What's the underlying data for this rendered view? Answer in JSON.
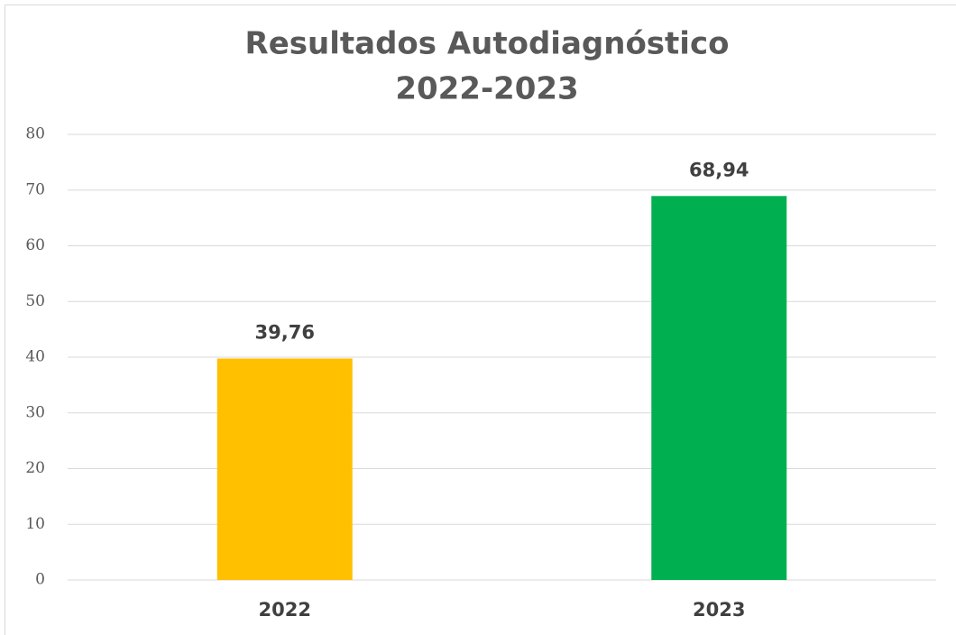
{
  "chart_data": {
    "type": "bar",
    "title": [
      "Resultados Autodiagnóstico",
      "2022-2023"
    ],
    "categories": [
      "2022",
      "2023"
    ],
    "values": [
      39.76,
      68.94
    ],
    "value_labels": [
      "39,76",
      "68,94"
    ],
    "colors": [
      "#ffc000",
      "#00b050"
    ],
    "ylim": [
      0,
      80
    ],
    "yticks": [
      0,
      10,
      20,
      30,
      40,
      50,
      60,
      70,
      80
    ],
    "grid": true
  }
}
